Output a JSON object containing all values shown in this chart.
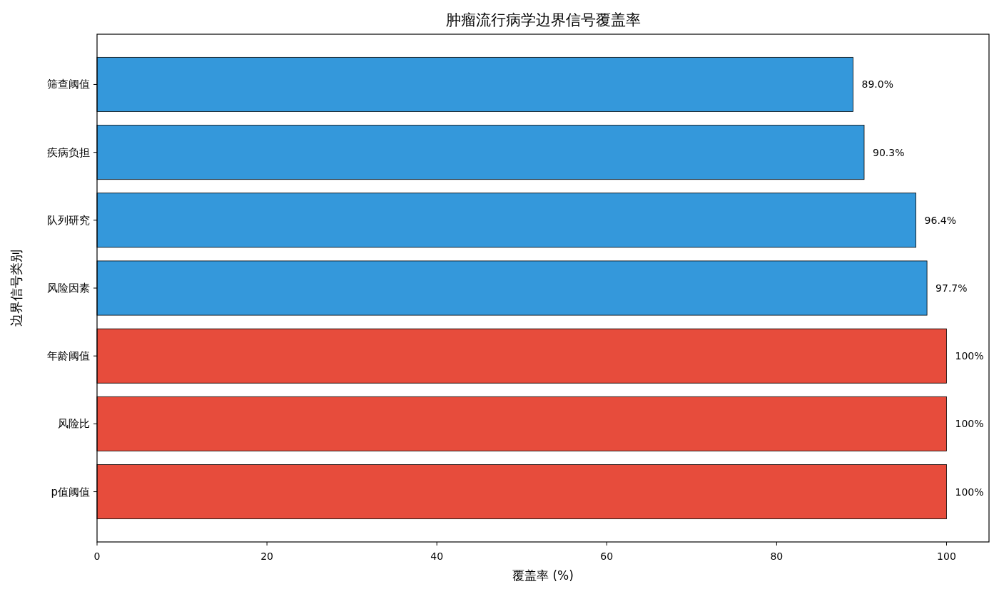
{
  "chart_data": {
    "type": "bar",
    "orientation": "horizontal",
    "title": "肿瘤流行病学边界信号覆盖率",
    "xlabel": "覆盖率 (%)",
    "ylabel": "边界信号类别",
    "categories": [
      "筛查阈值",
      "疾病负担",
      "队列研究",
      "风险因素",
      "年龄阈值",
      "风险比",
      "p值阈值"
    ],
    "values": [
      89.0,
      90.3,
      96.4,
      97.7,
      100,
      100,
      100
    ],
    "colors": [
      "#3498db",
      "#3498db",
      "#3498db",
      "#3498db",
      "#e74c3c",
      "#e74c3c",
      "#e74c3c"
    ],
    "value_labels": [
      "89.0%",
      "90.3%",
      "96.4%",
      "97.7%",
      "100%",
      "100%",
      "100%"
    ],
    "xlim": [
      0,
      105
    ],
    "xticks": [
      0,
      20,
      40,
      60,
      80,
      100
    ]
  }
}
